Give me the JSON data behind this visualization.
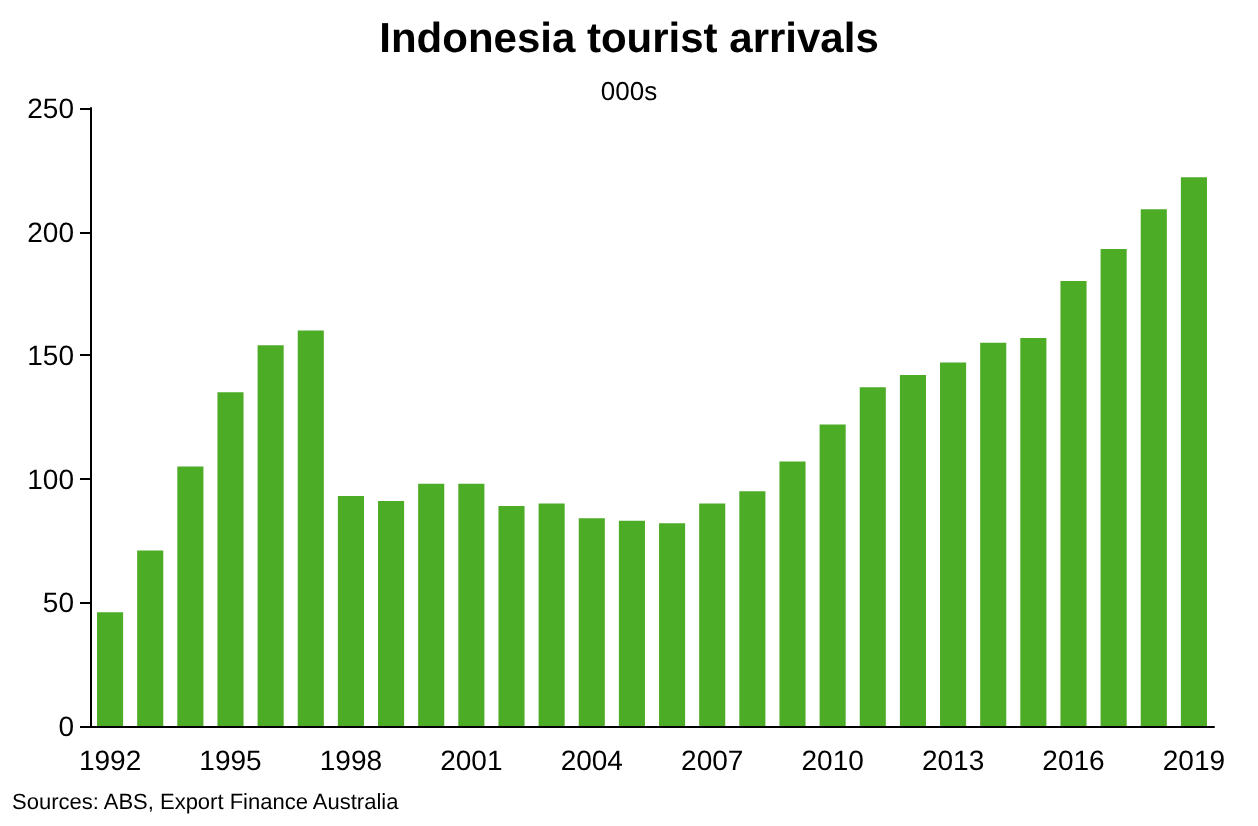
{
  "chart_data": {
    "type": "bar",
    "title": "Indonesia tourist arrivals",
    "subtitle": "000s",
    "categories": [
      "1992",
      null,
      null,
      "1995",
      null,
      null,
      "1998",
      null,
      null,
      "2001",
      null,
      null,
      "2004",
      null,
      null,
      "2007",
      null,
      null,
      "2010",
      null,
      null,
      "2013",
      null,
      null,
      "2016",
      null,
      null,
      "2019"
    ],
    "values": [
      46,
      71,
      105,
      135,
      154,
      160,
      93,
      91,
      98,
      98,
      89,
      90,
      84,
      83,
      82,
      90,
      95,
      107,
      122,
      137,
      142,
      147,
      155,
      157,
      180,
      193,
      209,
      222
    ],
    "color": "#4dac26",
    "ylim": [
      0,
      250
    ],
    "yticks": [
      0,
      50,
      100,
      150,
      200,
      250
    ],
    "grid": false,
    "annotations": [
      "Sources: ABS, Export Finance Australia"
    ]
  }
}
